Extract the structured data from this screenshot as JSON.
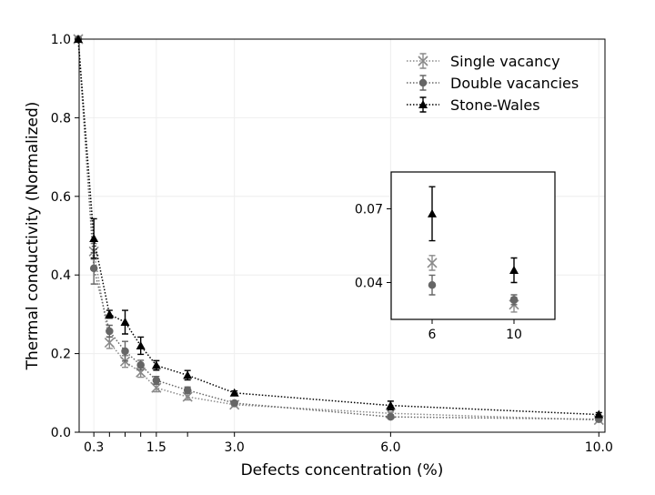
{
  "chart_data": {
    "type": "line",
    "xlabel": "Defects concentration (%)",
    "ylabel": "Thermal conductivity (Normalized)",
    "xlim": [
      0,
      10.1
    ],
    "ylim": [
      0,
      1.0
    ],
    "xticks": [
      "0.3",
      "1.5",
      "3.0",
      "6.0",
      "10.0"
    ],
    "xtick_values": [
      0.3,
      1.5,
      3.0,
      6.0,
      10.0
    ],
    "yticks": [
      "0.0",
      "0.2",
      "0.4",
      "0.6",
      "0.8",
      "1.0"
    ],
    "ytick_values": [
      0,
      0.2,
      0.4,
      0.6,
      0.8,
      1.0
    ],
    "grid": true,
    "legend_position": "top-right",
    "colors": {
      "single": "#8a8a8a",
      "double": "#666666",
      "sw": "#000000"
    },
    "series": [
      {
        "name": "Single vacancy",
        "marker": "x",
        "x": [
          0,
          0.3,
          0.6,
          0.9,
          1.2,
          1.5,
          2.1,
          3.0,
          6.0,
          10.0
        ],
        "y": [
          1.0,
          0.46,
          0.228,
          0.18,
          0.152,
          0.113,
          0.09,
          0.07,
          0.048,
          0.031
        ],
        "err": [
          0,
          0.02,
          0.015,
          0.015,
          0.012,
          0.01,
          0.008,
          0.005,
          0.003,
          0.003
        ]
      },
      {
        "name": "Double vacancies",
        "marker": "o",
        "x": [
          0,
          0.3,
          0.6,
          0.9,
          1.2,
          1.5,
          2.1,
          3.0,
          6.0,
          10.0
        ],
        "y": [
          1.0,
          0.417,
          0.257,
          0.206,
          0.171,
          0.132,
          0.107,
          0.074,
          0.039,
          0.033
        ],
        "err": [
          0,
          0.04,
          0.015,
          0.025,
          0.012,
          0.01,
          0.008,
          0.005,
          0.004,
          0.002
        ]
      },
      {
        "name": "Stone-Wales",
        "marker": "^",
        "x": [
          0,
          0.3,
          0.6,
          0.9,
          1.2,
          1.5,
          2.1,
          3.0,
          6.0,
          10.0
        ],
        "y": [
          1.0,
          0.493,
          0.3,
          0.28,
          0.22,
          0.17,
          0.145,
          0.1,
          0.068,
          0.045
        ],
        "err": [
          0,
          0.05,
          0.01,
          0.03,
          0.022,
          0.012,
          0.012,
          0.005,
          0.011,
          0.005
        ]
      }
    ],
    "inset": {
      "xlim": [
        4,
        12
      ],
      "ylim": [
        0.025,
        0.085
      ],
      "xticks": [
        "6",
        "10"
      ],
      "xtick_values": [
        6,
        10
      ],
      "yticks": [
        "0.04",
        "0.07"
      ],
      "ytick_values": [
        0.04,
        0.07
      ]
    }
  }
}
